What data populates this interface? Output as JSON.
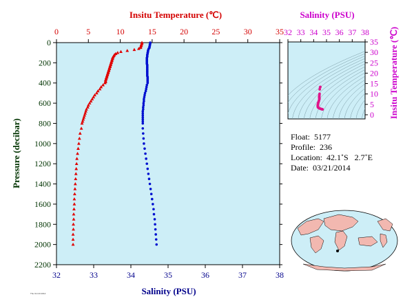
{
  "chart_data": [
    {
      "type": "scatter",
      "name": "profile",
      "top_axis": {
        "label": "Insitu Temperature (℃)",
        "range": [
          0,
          35
        ],
        "ticks": [
          "0",
          "5",
          "10",
          "15",
          "20",
          "25",
          "30",
          "35"
        ],
        "color": "#d40000"
      },
      "bottom_axis": {
        "label": "Salinity (PSU)",
        "range": [
          32,
          38
        ],
        "ticks": [
          "32",
          "33",
          "34",
          "35",
          "36",
          "37",
          "38"
        ],
        "color": "#00008b"
      },
      "y_axis": {
        "label": "Pressure (decibar)",
        "range": [
          0,
          2200
        ],
        "inverted": true,
        "ticks": [
          "0",
          "200",
          "400",
          "600",
          "800",
          "1000",
          "1200",
          "1400",
          "1600",
          "1800",
          "2000",
          "2200"
        ],
        "color": "#003300"
      },
      "background": "#cdeef7",
      "series": [
        {
          "color": "#e00000",
          "marker": "triangle",
          "axis": "top",
          "points": [
            [
              13.4,
              0
            ],
            [
              13.4,
              10
            ],
            [
              13.3,
              20
            ],
            [
              13.3,
              30
            ],
            [
              13.2,
              40
            ],
            [
              13.2,
              50
            ],
            [
              12.9,
              60
            ],
            [
              12.2,
              70
            ],
            [
              11.1,
              80
            ],
            [
              10.1,
              90
            ],
            [
              9.6,
              100
            ],
            [
              9.3,
              110
            ],
            [
              9.1,
              120
            ],
            [
              9.0,
              130
            ],
            [
              8.9,
              140
            ],
            [
              8.8,
              150
            ],
            [
              8.8,
              160
            ],
            [
              8.7,
              170
            ],
            [
              8.7,
              180
            ],
            [
              8.6,
              190
            ],
            [
              8.6,
              200
            ],
            [
              8.5,
              210
            ],
            [
              8.5,
              220
            ],
            [
              8.4,
              230
            ],
            [
              8.4,
              240
            ],
            [
              8.3,
              250
            ],
            [
              8.3,
              260
            ],
            [
              8.2,
              270
            ],
            [
              8.2,
              280
            ],
            [
              8.1,
              290
            ],
            [
              8.1,
              300
            ],
            [
              8.0,
              310
            ],
            [
              8.0,
              320
            ],
            [
              7.9,
              330
            ],
            [
              7.9,
              340
            ],
            [
              7.8,
              350
            ],
            [
              7.8,
              360
            ],
            [
              7.7,
              370
            ],
            [
              7.7,
              380
            ],
            [
              7.7,
              390
            ],
            [
              7.6,
              400
            ],
            [
              7.3,
              420
            ],
            [
              7.0,
              440
            ],
            [
              6.8,
              460
            ],
            [
              6.5,
              480
            ],
            [
              6.3,
              500
            ],
            [
              6.0,
              520
            ],
            [
              5.8,
              540
            ],
            [
              5.6,
              560
            ],
            [
              5.4,
              580
            ],
            [
              5.2,
              600
            ],
            [
              5.0,
              620
            ],
            [
              4.9,
              640
            ],
            [
              4.7,
              660
            ],
            [
              4.6,
              680
            ],
            [
              4.5,
              700
            ],
            [
              4.4,
              720
            ],
            [
              4.3,
              740
            ],
            [
              4.2,
              760
            ],
            [
              4.1,
              780
            ],
            [
              4.0,
              800
            ],
            [
              3.9,
              850
            ],
            [
              3.7,
              900
            ],
            [
              3.6,
              950
            ],
            [
              3.5,
              1000
            ],
            [
              3.4,
              1050
            ],
            [
              3.3,
              1100
            ],
            [
              3.2,
              1150
            ],
            [
              3.15,
              1200
            ],
            [
              3.1,
              1250
            ],
            [
              3.05,
              1300
            ],
            [
              3.0,
              1350
            ],
            [
              2.95,
              1400
            ],
            [
              2.9,
              1450
            ],
            [
              2.85,
              1500
            ],
            [
              2.8,
              1550
            ],
            [
              2.8,
              1600
            ],
            [
              2.75,
              1650
            ],
            [
              2.7,
              1700
            ],
            [
              2.7,
              1750
            ],
            [
              2.65,
              1800
            ],
            [
              2.65,
              1850
            ],
            [
              2.6,
              1900
            ],
            [
              2.6,
              1950
            ],
            [
              2.6,
              2000
            ]
          ]
        },
        {
          "color": "#0010d0",
          "marker": "circle",
          "axis": "bottom",
          "points": [
            [
              34.52,
              0
            ],
            [
              34.52,
              10
            ],
            [
              34.51,
              20
            ],
            [
              34.51,
              30
            ],
            [
              34.5,
              40
            ],
            [
              34.5,
              50
            ],
            [
              34.48,
              60
            ],
            [
              34.47,
              70
            ],
            [
              34.46,
              80
            ],
            [
              34.46,
              90
            ],
            [
              34.45,
              100
            ],
            [
              34.45,
              110
            ],
            [
              34.44,
              120
            ],
            [
              34.44,
              130
            ],
            [
              34.44,
              140
            ],
            [
              34.43,
              150
            ],
            [
              34.43,
              160
            ],
            [
              34.43,
              170
            ],
            [
              34.43,
              180
            ],
            [
              34.43,
              190
            ],
            [
              34.43,
              200
            ],
            [
              34.43,
              210
            ],
            [
              34.44,
              220
            ],
            [
              34.44,
              230
            ],
            [
              34.44,
              240
            ],
            [
              34.44,
              250
            ],
            [
              34.44,
              260
            ],
            [
              34.44,
              270
            ],
            [
              34.44,
              280
            ],
            [
              34.44,
              290
            ],
            [
              34.44,
              300
            ],
            [
              34.44,
              310
            ],
            [
              34.44,
              320
            ],
            [
              34.44,
              330
            ],
            [
              34.45,
              340
            ],
            [
              34.45,
              350
            ],
            [
              34.45,
              360
            ],
            [
              34.45,
              370
            ],
            [
              34.45,
              380
            ],
            [
              34.45,
              390
            ],
            [
              34.45,
              400
            ],
            [
              34.43,
              420
            ],
            [
              34.42,
              440
            ],
            [
              34.41,
              460
            ],
            [
              34.4,
              480
            ],
            [
              34.38,
              500
            ],
            [
              34.37,
              520
            ],
            [
              34.36,
              540
            ],
            [
              34.35,
              560
            ],
            [
              34.35,
              580
            ],
            [
              34.34,
              600
            ],
            [
              34.34,
              620
            ],
            [
              34.33,
              640
            ],
            [
              34.33,
              660
            ],
            [
              34.32,
              680
            ],
            [
              34.32,
              700
            ],
            [
              34.32,
              720
            ],
            [
              34.32,
              740
            ],
            [
              34.32,
              760
            ],
            [
              34.32,
              780
            ],
            [
              34.32,
              800
            ],
            [
              34.32,
              850
            ],
            [
              34.33,
              900
            ],
            [
              34.34,
              950
            ],
            [
              34.35,
              1000
            ],
            [
              34.37,
              1050
            ],
            [
              34.39,
              1100
            ],
            [
              34.41,
              1150
            ],
            [
              34.43,
              1200
            ],
            [
              34.45,
              1250
            ],
            [
              34.47,
              1300
            ],
            [
              34.49,
              1350
            ],
            [
              34.51,
              1400
            ],
            [
              34.53,
              1450
            ],
            [
              34.55,
              1500
            ],
            [
              34.57,
              1550
            ],
            [
              34.59,
              1600
            ],
            [
              34.61,
              1650
            ],
            [
              34.62,
              1700
            ],
            [
              34.64,
              1750
            ],
            [
              34.65,
              1800
            ],
            [
              34.66,
              1850
            ],
            [
              34.67,
              1900
            ],
            [
              34.68,
              1950
            ],
            [
              34.69,
              2000
            ]
          ]
        }
      ]
    },
    {
      "type": "scatter",
      "name": "ts-diagram",
      "top_axis": {
        "label": "Salinity (PSU)",
        "range": [
          32,
          38
        ],
        "ticks": [
          "32",
          "33",
          "34",
          "35",
          "36",
          "37",
          "38"
        ],
        "color": "#cc00cc"
      },
      "y_axis": {
        "label": "Insitu Temperature (℃)",
        "range": [
          -2,
          35
        ],
        "ticks": [
          "0",
          "5",
          "10",
          "15",
          "20",
          "25",
          "30",
          "35"
        ],
        "color": "#cc00cc",
        "side": "right"
      },
      "background": "#cdeef7",
      "series": [
        {
          "color": "#e0158a",
          "marker": "circle",
          "points": [
            [
              34.52,
              13.4
            ],
            [
              34.5,
              13.2
            ],
            [
              34.47,
              12.2
            ],
            [
              34.46,
              10.1
            ],
            [
              34.45,
              9.6
            ],
            [
              34.44,
              9.1
            ],
            [
              34.43,
              8.8
            ],
            [
              34.43,
              8.6
            ],
            [
              34.44,
              8.4
            ],
            [
              34.44,
              8.2
            ],
            [
              34.44,
              8.0
            ],
            [
              34.45,
              7.8
            ],
            [
              34.45,
              7.6
            ],
            [
              34.42,
              7.0
            ],
            [
              34.4,
              6.5
            ],
            [
              34.37,
              6.0
            ],
            [
              34.35,
              5.6
            ],
            [
              34.34,
              5.2
            ],
            [
              34.33,
              4.9
            ],
            [
              34.32,
              4.6
            ],
            [
              34.32,
              4.4
            ],
            [
              34.32,
              4.2
            ],
            [
              34.32,
              4.0
            ],
            [
              34.33,
              3.7
            ],
            [
              34.35,
              3.5
            ],
            [
              34.39,
              3.3
            ],
            [
              34.43,
              3.15
            ],
            [
              34.47,
              3.05
            ],
            [
              34.51,
              2.95
            ],
            [
              34.55,
              2.85
            ],
            [
              34.59,
              2.8
            ],
            [
              34.62,
              2.7
            ],
            [
              34.65,
              2.65
            ],
            [
              34.67,
              2.6
            ],
            [
              34.69,
              2.6
            ]
          ]
        }
      ]
    }
  ],
  "float_info": {
    "float": "Float:  5177",
    "profile": "Profile:  236",
    "location": "Location:  42.1˚S   2.7˚E",
    "date": "Date:  03/21/2014"
  },
  "footer_tiny": "Thu Oct 23 2014"
}
